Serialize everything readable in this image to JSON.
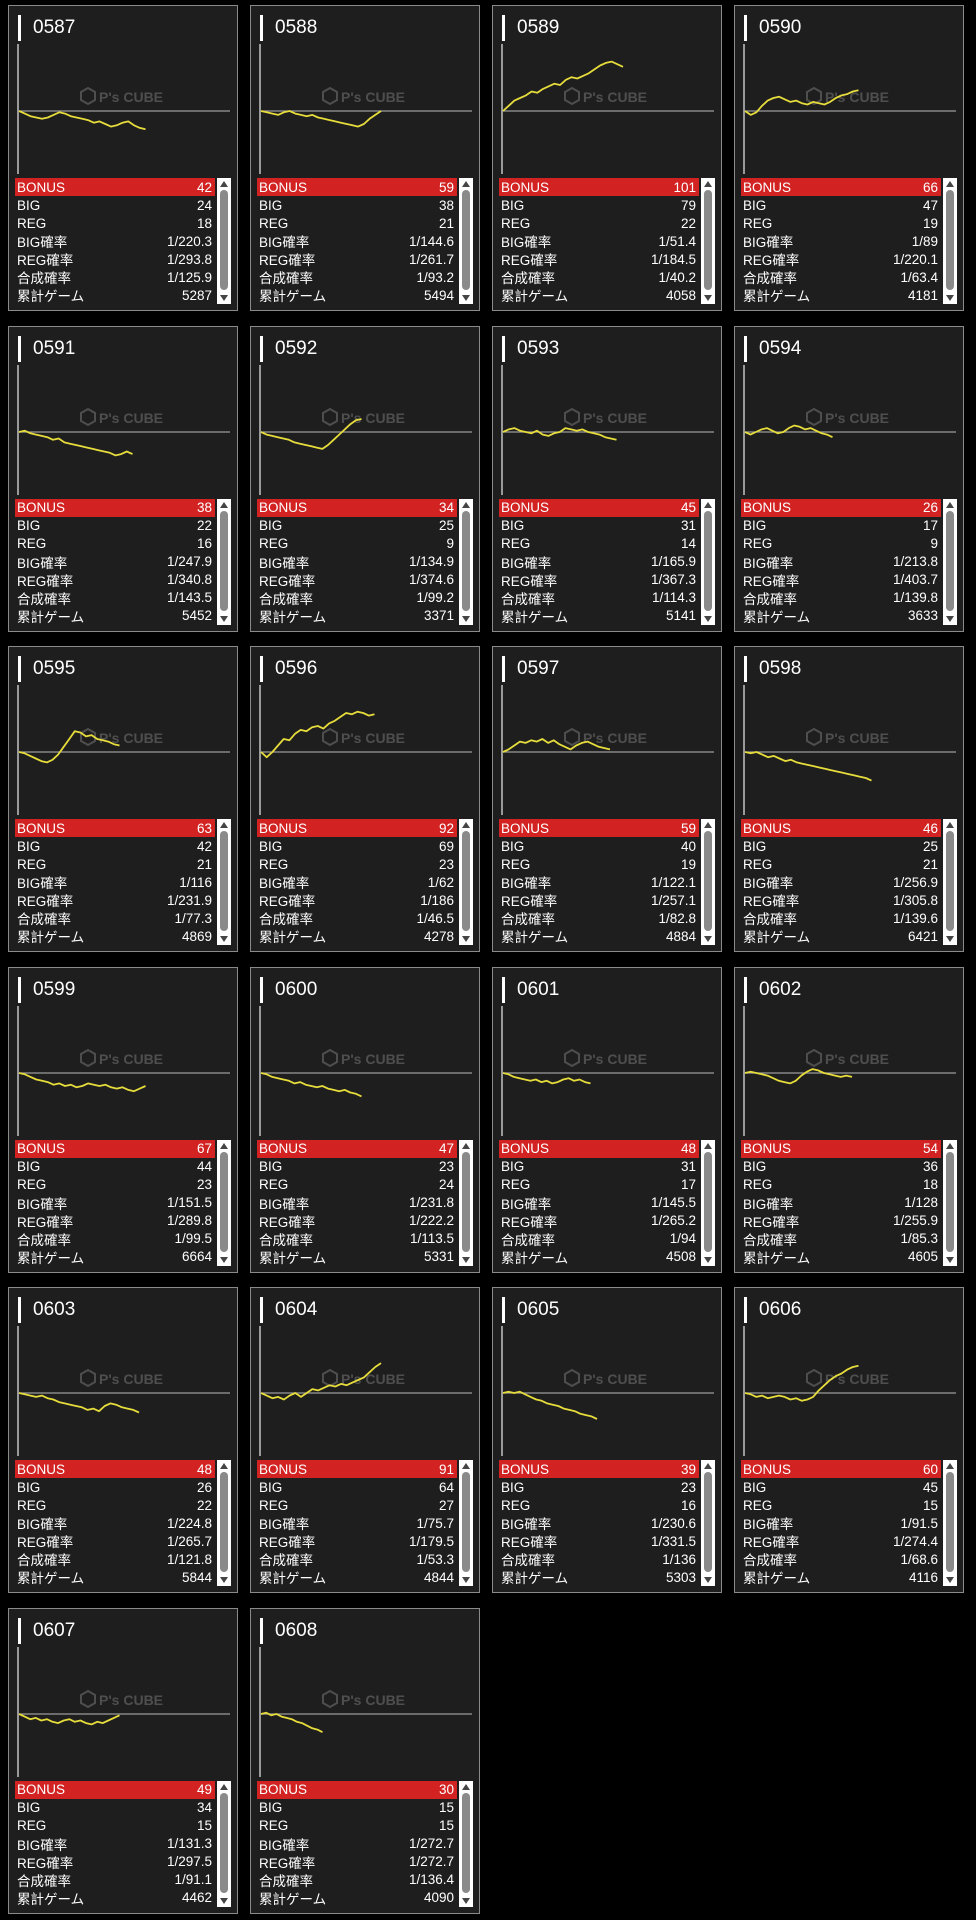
{
  "labels": [
    "BONUS",
    "BIG",
    "REG",
    "BIG確率",
    "REG確率",
    "合成確率",
    "累計ゲーム"
  ],
  "watermark": "P's CUBE",
  "line_color": "#e6dc3c",
  "bonus_color": "#d22222",
  "machines": [
    {
      "id": "0587",
      "bonus": "42",
      "big": "24",
      "reg": "18",
      "big_rate": "1/220.3",
      "reg_rate": "1/293.8",
      "total_rate": "1/125.9",
      "games": "5287",
      "trend": [
        0,
        -2,
        -4,
        -5,
        -6,
        -5,
        -3,
        -1,
        -2,
        -4,
        -5,
        -6,
        -7,
        -9,
        -8,
        -10,
        -12,
        -11,
        -9,
        -8,
        -11,
        -13,
        -14
      ]
    },
    {
      "id": "0588",
      "bonus": "59",
      "big": "38",
      "reg": "21",
      "big_rate": "1/144.6",
      "reg_rate": "1/261.7",
      "total_rate": "1/93.2",
      "games": "5494",
      "trend": [
        0,
        -1,
        -2,
        -3,
        -1,
        0,
        -2,
        -3,
        -4,
        -3,
        -5,
        -6,
        -7,
        -8,
        -9,
        -10,
        -11,
        -12,
        -10,
        -6,
        -3,
        0
      ]
    },
    {
      "id": "0589",
      "bonus": "101",
      "big": "79",
      "reg": "22",
      "big_rate": "1/51.4",
      "reg_rate": "1/184.5",
      "total_rate": "1/40.2",
      "games": "4058",
      "trend": [
        0,
        4,
        8,
        10,
        12,
        15,
        14,
        17,
        19,
        21,
        20,
        24,
        26,
        25,
        27,
        29,
        32,
        35,
        37,
        38,
        36,
        34
      ]
    },
    {
      "id": "0590",
      "bonus": "66",
      "big": "47",
      "reg": "19",
      "big_rate": "1/89",
      "reg_rate": "1/220.1",
      "total_rate": "1/63.4",
      "games": "4181",
      "trend": [
        0,
        -3,
        -1,
        4,
        8,
        10,
        11,
        9,
        7,
        8,
        6,
        5,
        7,
        6,
        5,
        7,
        10,
        12,
        13,
        15,
        16
      ]
    },
    {
      "id": "0591",
      "bonus": "38",
      "big": "22",
      "reg": "16",
      "big_rate": "1/247.9",
      "reg_rate": "1/340.8",
      "total_rate": "1/143.5",
      "games": "5452",
      "trend": [
        0,
        1,
        -1,
        -2,
        -3,
        -4,
        -6,
        -5,
        -8,
        -9,
        -10,
        -11,
        -12,
        -13,
        -14,
        -15,
        -16,
        -18,
        -17,
        -15,
        -17
      ]
    },
    {
      "id": "0592",
      "bonus": "34",
      "big": "25",
      "reg": "9",
      "big_rate": "1/134.9",
      "reg_rate": "1/374.6",
      "total_rate": "1/99.2",
      "games": "3371",
      "trend": [
        0,
        -2,
        -3,
        -4,
        -5,
        -6,
        -8,
        -9,
        -10,
        -11,
        -12,
        -13,
        -10,
        -6,
        -2,
        2,
        6,
        9,
        10
      ]
    },
    {
      "id": "0593",
      "bonus": "45",
      "big": "31",
      "reg": "14",
      "big_rate": "1/165.9",
      "reg_rate": "1/367.3",
      "total_rate": "1/114.3",
      "games": "5141",
      "trend": [
        0,
        2,
        3,
        1,
        0,
        -1,
        1,
        -2,
        -3,
        -1,
        0,
        3,
        2,
        1,
        2,
        0,
        -1,
        -2,
        -4,
        -5,
        -6
      ]
    },
    {
      "id": "0594",
      "bonus": "26",
      "big": "17",
      "reg": "9",
      "big_rate": "1/213.8",
      "reg_rate": "1/403.7",
      "total_rate": "1/139.8",
      "games": "3633",
      "trend": [
        0,
        -2,
        0,
        2,
        3,
        1,
        -1,
        0,
        3,
        5,
        4,
        2,
        3,
        1,
        -1,
        -2,
        -4
      ]
    },
    {
      "id": "0595",
      "bonus": "63",
      "big": "42",
      "reg": "21",
      "big_rate": "1/116",
      "reg_rate": "1/231.9",
      "total_rate": "1/77.3",
      "games": "4869",
      "trend": [
        0,
        -1,
        -3,
        -5,
        -7,
        -8,
        -6,
        -2,
        4,
        10,
        16,
        15,
        12,
        13,
        10,
        9,
        8,
        6,
        5
      ]
    },
    {
      "id": "0596",
      "bonus": "92",
      "big": "69",
      "reg": "23",
      "big_rate": "1/62",
      "reg_rate": "1/186",
      "total_rate": "1/46.5",
      "games": "4278",
      "trend": [
        0,
        -4,
        0,
        5,
        10,
        9,
        14,
        17,
        16,
        19,
        20,
        18,
        22,
        24,
        27,
        30,
        29,
        31,
        30,
        28,
        29
      ]
    },
    {
      "id": "0597",
      "bonus": "59",
      "big": "40",
      "reg": "19",
      "big_rate": "1/122.1",
      "reg_rate": "1/257.1",
      "total_rate": "1/82.8",
      "games": "4884",
      "trend": [
        0,
        2,
        5,
        8,
        7,
        9,
        8,
        10,
        7,
        9,
        6,
        4,
        2,
        5,
        7,
        8,
        6,
        4,
        3,
        2
      ]
    },
    {
      "id": "0598",
      "bonus": "46",
      "big": "25",
      "reg": "21",
      "big_rate": "1/256.9",
      "reg_rate": "1/305.8",
      "total_rate": "1/139.6",
      "games": "6421",
      "trend": [
        0,
        -1,
        0,
        -2,
        -4,
        -3,
        -5,
        -7,
        -6,
        -8,
        -9,
        -10,
        -11,
        -12,
        -13,
        -14,
        -15,
        -16,
        -17,
        -18,
        -19,
        -20,
        -22
      ]
    },
    {
      "id": "0599",
      "bonus": "67",
      "big": "44",
      "reg": "23",
      "big_rate": "1/151.5",
      "reg_rate": "1/289.8",
      "total_rate": "1/99.5",
      "games": "6664",
      "trend": [
        0,
        -1,
        -3,
        -5,
        -6,
        -7,
        -9,
        -8,
        -10,
        -9,
        -11,
        -10,
        -8,
        -9,
        -10,
        -9,
        -11,
        -12,
        -11,
        -13,
        -14,
        -12,
        -10
      ]
    },
    {
      "id": "0600",
      "bonus": "47",
      "big": "23",
      "reg": "24",
      "big_rate": "1/231.8",
      "reg_rate": "1/222.2",
      "total_rate": "1/113.5",
      "games": "5331",
      "trend": [
        0,
        -1,
        -3,
        -4,
        -5,
        -6,
        -8,
        -7,
        -9,
        -10,
        -11,
        -10,
        -12,
        -13,
        -14,
        -13,
        -15,
        -16,
        -18
      ]
    },
    {
      "id": "0601",
      "bonus": "48",
      "big": "31",
      "reg": "17",
      "big_rate": "1/145.5",
      "reg_rate": "1/265.2",
      "total_rate": "1/94",
      "games": "4508",
      "trend": [
        0,
        -1,
        -3,
        -4,
        -5,
        -6,
        -5,
        -7,
        -6,
        -8,
        -7,
        -5,
        -4,
        -6,
        -5,
        -7,
        -8
      ]
    },
    {
      "id": "0602",
      "bonus": "54",
      "big": "36",
      "reg": "18",
      "big_rate": "1/128",
      "reg_rate": "1/255.9",
      "total_rate": "1/85.3",
      "games": "4605",
      "trend": [
        0,
        1,
        0,
        -1,
        -2,
        -4,
        -6,
        -7,
        -8,
        -6,
        -2,
        1,
        3,
        2,
        0,
        -1,
        -2,
        -3,
        -2,
        -3
      ]
    },
    {
      "id": "0603",
      "bonus": "48",
      "big": "26",
      "reg": "22",
      "big_rate": "1/224.8",
      "reg_rate": "1/265.7",
      "total_rate": "1/121.8",
      "games": "5844",
      "trend": [
        0,
        -1,
        -2,
        -3,
        -2,
        -4,
        -5,
        -7,
        -8,
        -9,
        -10,
        -11,
        -13,
        -12,
        -14,
        -10,
        -8,
        -9,
        -11,
        -12,
        -13,
        -15
      ]
    },
    {
      "id": "0604",
      "bonus": "91",
      "big": "64",
      "reg": "27",
      "big_rate": "1/75.7",
      "reg_rate": "1/179.5",
      "total_rate": "1/53.3",
      "games": "4844",
      "trend": [
        0,
        -2,
        -4,
        -3,
        -5,
        -2,
        0,
        -3,
        0,
        3,
        2,
        4,
        6,
        5,
        7,
        6,
        8,
        10,
        12,
        16,
        20,
        23
      ]
    },
    {
      "id": "0605",
      "bonus": "39",
      "big": "23",
      "reg": "16",
      "big_rate": "1/230.6",
      "reg_rate": "1/331.5",
      "total_rate": "1/136",
      "games": "5303",
      "trend": [
        0,
        1,
        0,
        1,
        -1,
        -3,
        -5,
        -6,
        -8,
        -9,
        -10,
        -12,
        -13,
        -14,
        -16,
        -17,
        -18,
        -20
      ]
    },
    {
      "id": "0606",
      "bonus": "60",
      "big": "45",
      "reg": "15",
      "big_rate": "1/91.5",
      "reg_rate": "1/274.4",
      "total_rate": "1/68.6",
      "games": "4116",
      "trend": [
        0,
        -1,
        -3,
        -2,
        -4,
        -3,
        -2,
        -3,
        -5,
        -4,
        -6,
        -5,
        -3,
        2,
        6,
        10,
        13,
        15,
        18,
        20,
        21
      ]
    },
    {
      "id": "0607",
      "bonus": "49",
      "big": "34",
      "reg": "15",
      "big_rate": "1/131.3",
      "reg_rate": "1/297.5",
      "total_rate": "1/91.1",
      "games": "4462",
      "trend": [
        0,
        -2,
        -4,
        -3,
        -5,
        -4,
        -6,
        -7,
        -5,
        -4,
        -6,
        -5,
        -7,
        -8,
        -6,
        -7,
        -5,
        -3,
        -1
      ]
    },
    {
      "id": "0608",
      "bonus": "30",
      "big": "15",
      "reg": "15",
      "big_rate": "1/272.7",
      "reg_rate": "1/272.7",
      "total_rate": "1/136.4",
      "games": "4090",
      "trend": [
        0,
        1,
        -1,
        0,
        -2,
        -3,
        -4,
        -6,
        -7,
        -9,
        -11,
        -12,
        -14
      ]
    }
  ]
}
